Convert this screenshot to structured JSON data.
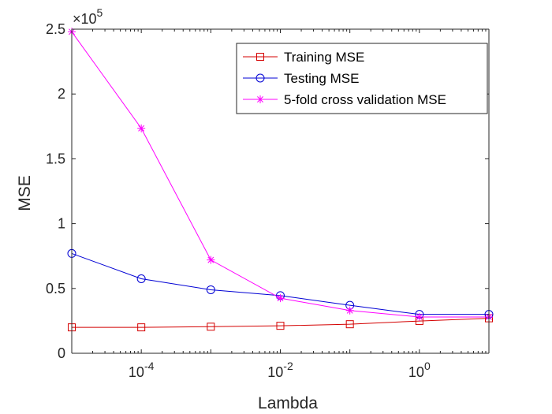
{
  "chart_data": {
    "type": "line",
    "xlabel": "Lambda",
    "ylabel": "MSE",
    "x_scale": "log",
    "xlim": [
      1e-05,
      10
    ],
    "ylim": [
      0,
      250000
    ],
    "y_multiplier_label": "×10",
    "y_multiplier_exponent": "5",
    "x": [
      1e-05,
      0.0001,
      0.001,
      0.01,
      0.1,
      1,
      10
    ],
    "x_ticks": [
      {
        "value": 0.0001,
        "base": "10",
        "exp": "-4"
      },
      {
        "value": 0.01,
        "base": "10",
        "exp": "-2"
      },
      {
        "value": 1,
        "base": "10",
        "exp": "0"
      }
    ],
    "y_ticks": [
      {
        "value": 0,
        "label": "0"
      },
      {
        "value": 50000,
        "label": "0.5"
      },
      {
        "value": 100000,
        "label": "1"
      },
      {
        "value": 150000,
        "label": "1.5"
      },
      {
        "value": 200000,
        "label": "2"
      },
      {
        "value": 250000,
        "label": "2.5"
      }
    ],
    "legend_position": "top-right",
    "grid": false,
    "series": [
      {
        "name": "Training MSE",
        "color": "#d40000",
        "marker": "square",
        "values": [
          20000,
          20000,
          20500,
          21200,
          22400,
          24900,
          27000
        ]
      },
      {
        "name": "Testing MSE",
        "color": "#0000d4",
        "marker": "circle",
        "values": [
          77000,
          57500,
          49000,
          44500,
          37000,
          30000,
          30000
        ]
      },
      {
        "name": "5-fold cross validation MSE",
        "color": "#ff00ff",
        "marker": "asterisk",
        "values": [
          248000,
          173500,
          72000,
          42500,
          33000,
          28000,
          28000
        ]
      }
    ]
  }
}
